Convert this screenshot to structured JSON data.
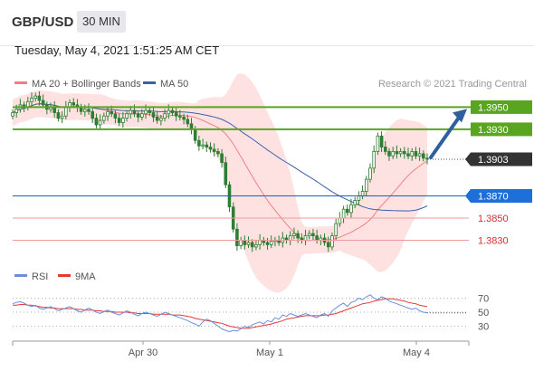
{
  "header": {
    "pair": "GBP/USD",
    "timeframe": "30 MIN"
  },
  "datetime": "Tuesday, May 4, 2021 1:51:25 AM CET",
  "colors": {
    "resistance": "#5aa51f",
    "support": "#1565c0",
    "levelRed": "#ef9a9a",
    "current": "#333333",
    "ma20": "#f08080",
    "band": "#fdd8d8",
    "ma50": "#3b5fa8",
    "arrow": "#2f5f9e",
    "rsi": "#6b8fdc",
    "rsi9": "#e53935",
    "candle": "#2e7d32"
  },
  "chart_data": [
    {
      "type": "candlestick",
      "legend": [
        "MA 20 + Bollinger Bands",
        "MA 50"
      ],
      "copyright": "Research © 2021 Trading Central",
      "x_ticks": [
        "Apr 30",
        "May 1",
        "May 4"
      ],
      "ylim": [
        1.381,
        1.3965
      ],
      "close": [
        1.3945,
        1.3948,
        1.3952,
        1.395,
        1.3955,
        1.3958,
        1.396,
        1.3956,
        1.3952,
        1.3948,
        1.395,
        1.3945,
        1.394,
        1.3942,
        1.395,
        1.3954,
        1.3952,
        1.395,
        1.3946,
        1.3948,
        1.3946,
        1.394,
        1.3934,
        1.3938,
        1.3942,
        1.3946,
        1.3944,
        1.394,
        1.3936,
        1.394,
        1.3944,
        1.3947,
        1.3944,
        1.3941,
        1.3944,
        1.3947,
        1.3945,
        1.3941,
        1.3938,
        1.394,
        1.3944,
        1.3947,
        1.3945,
        1.3942,
        1.3941,
        1.3939,
        1.3935,
        1.393,
        1.392,
        1.3915,
        1.3916,
        1.3914,
        1.3912,
        1.391,
        1.3908,
        1.39,
        1.388,
        1.386,
        1.384,
        1.3825,
        1.383,
        1.3826,
        1.3828,
        1.3824,
        1.3826,
        1.383,
        1.3828,
        1.3826,
        1.3829,
        1.383,
        1.3828,
        1.3832,
        1.383,
        1.3834,
        1.3836,
        1.3832,
        1.383,
        1.3834,
        1.3836,
        1.3834,
        1.383,
        1.3832,
        1.3828,
        1.3824,
        1.3834,
        1.3845,
        1.385,
        1.3858,
        1.3855,
        1.3862,
        1.3866,
        1.387,
        1.3874,
        1.3885,
        1.3895,
        1.391,
        1.3924,
        1.3914,
        1.391,
        1.3906,
        1.391,
        1.3908,
        1.391,
        1.3908,
        1.3906,
        1.391,
        1.3906,
        1.3908,
        1.3904,
        1.3903
      ],
      "current_price": "1.3903",
      "resistance_levels": [
        "1.3950",
        "1.3930"
      ],
      "support_levels": [
        "1.3870",
        "1.3850",
        "1.3830"
      ],
      "forecast": "up"
    },
    {
      "type": "line",
      "legend": [
        "RSI",
        "9MA"
      ],
      "y_ticks": [
        "70",
        "50",
        "30"
      ],
      "ylim": [
        15,
        85
      ],
      "rsi": [
        62,
        64,
        65,
        63,
        60,
        58,
        60,
        56,
        54,
        56,
        58,
        55,
        52,
        54,
        56,
        58,
        55,
        52,
        50,
        53,
        56,
        53,
        50,
        48,
        51,
        53,
        50,
        48,
        46,
        49,
        52,
        50,
        47,
        45,
        48,
        50,
        48,
        46,
        44,
        47,
        50,
        48,
        46,
        44,
        42,
        40,
        38,
        35,
        33,
        30,
        36,
        40,
        38,
        34,
        30,
        26,
        24,
        22,
        24,
        23,
        26,
        30,
        28,
        32,
        34,
        36,
        33,
        38,
        36,
        42,
        40,
        46,
        44,
        48,
        46,
        44,
        46,
        48,
        46,
        44,
        42,
        46,
        48,
        44,
        52,
        56,
        60,
        63,
        58,
        64,
        66,
        70,
        68,
        72,
        75,
        70,
        68,
        72,
        70,
        66,
        64,
        62,
        60,
        58,
        56,
        54,
        56,
        52,
        50,
        49
      ],
      "ma9": [
        60,
        60,
        61,
        61,
        60,
        60,
        59,
        58,
        57,
        57,
        56,
        56,
        55,
        55,
        55,
        55,
        55,
        54,
        54,
        53,
        53,
        53,
        52,
        52,
        51,
        51,
        51,
        50,
        50,
        50,
        50,
        49,
        49,
        48,
        48,
        48,
        48,
        47,
        47,
        47,
        47,
        47,
        46,
        46,
        46,
        45,
        44,
        43,
        41,
        40,
        39,
        38,
        37,
        36,
        35,
        34,
        32,
        30,
        29,
        28,
        27,
        27,
        27,
        28,
        29,
        30,
        31,
        32,
        33,
        35,
        36,
        38,
        40,
        41,
        42,
        43,
        44,
        45,
        45,
        45,
        45,
        45,
        46,
        46,
        47,
        48,
        50,
        52,
        54,
        56,
        58,
        60,
        62,
        63,
        64,
        66,
        67,
        68,
        69,
        69,
        69,
        68,
        67,
        66,
        64,
        63,
        62,
        60,
        59,
        58
      ]
    }
  ]
}
